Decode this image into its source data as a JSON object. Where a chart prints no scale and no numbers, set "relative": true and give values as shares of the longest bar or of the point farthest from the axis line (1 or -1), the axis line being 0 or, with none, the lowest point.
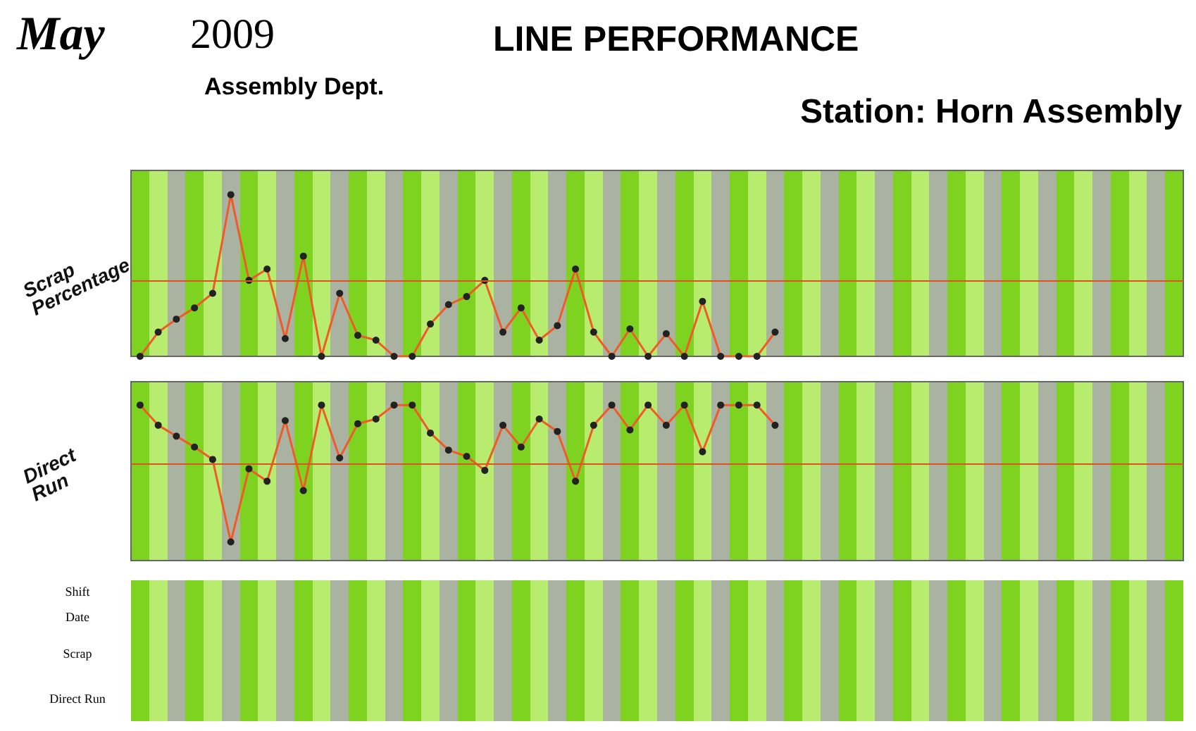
{
  "chart_data": [
    {
      "type": "line",
      "title": "LINE PERFORMANCE",
      "subtitle": "Assembly Dept.",
      "annotations": [
        "May",
        "2009",
        "Station: Horn Assembly"
      ],
      "ylabel": "Scrap Percentage",
      "relative": true,
      "marker": "circle",
      "line_style": "solid",
      "categories": [
        null,
        null,
        null,
        null,
        null,
        null,
        null,
        null,
        null,
        null,
        null,
        null,
        null,
        null,
        null,
        null,
        null,
        null,
        null,
        null,
        null,
        null,
        null,
        null,
        null,
        null,
        null,
        null,
        null,
        null,
        null,
        null,
        null,
        null,
        null,
        null,
        null,
        null,
        null,
        null,
        null,
        null,
        null,
        null,
        null,
        null,
        null,
        null,
        null,
        null,
        null,
        null,
        null,
        null,
        null,
        null,
        null,
        null
      ],
      "series": [
        {
          "color": "#f05a28",
          "values": [
            0,
            0.15,
            0.23,
            0.3,
            0.39,
            1,
            0.47,
            0.54,
            0.11,
            0.62,
            0,
            0.39,
            0.13,
            0.1,
            0,
            0,
            0.2,
            0.32,
            0.37,
            0.47,
            0.15,
            0.3,
            0.1,
            0.19,
            0.54,
            0.15,
            0,
            0.17,
            0,
            0.14,
            0,
            0.34,
            0,
            0,
            0,
            0.15,
            null,
            null,
            null,
            null,
            null,
            null,
            null,
            null,
            null,
            null,
            null,
            null,
            null,
            null,
            null,
            null,
            null,
            null,
            null,
            null,
            null,
            null
          ]
        }
      ],
      "ref_lines": [
        {
          "axis": "y",
          "value": 0.47,
          "color": "#d9541e"
        }
      ]
    },
    {
      "type": "line",
      "ylabel": "Direct Run",
      "relative": true,
      "marker": "circle",
      "line_style": "solid",
      "categories": [
        null,
        null,
        null,
        null,
        null,
        null,
        null,
        null,
        null,
        null,
        null,
        null,
        null,
        null,
        null,
        null,
        null,
        null,
        null,
        null,
        null,
        null,
        null,
        null,
        null,
        null,
        null,
        null,
        null,
        null,
        null,
        null,
        null,
        null,
        null,
        null,
        null,
        null,
        null,
        null,
        null,
        null,
        null,
        null,
        null,
        null,
        null,
        null,
        null,
        null,
        null,
        null,
        null,
        null,
        null,
        null,
        null,
        null
      ],
      "series": [
        {
          "color": "#f05a28",
          "values": [
            1,
            0.87,
            0.8,
            0.73,
            0.65,
            0.12,
            0.59,
            0.51,
            0.9,
            0.45,
            1,
            0.66,
            0.88,
            0.91,
            1,
            1,
            0.82,
            0.71,
            0.67,
            0.58,
            0.87,
            0.73,
            0.91,
            0.83,
            0.51,
            0.87,
            1,
            0.84,
            1,
            0.87,
            1,
            0.7,
            1,
            1,
            1,
            0.87,
            null,
            null,
            null,
            null,
            null,
            null,
            null,
            null,
            null,
            null,
            null,
            null,
            null,
            null,
            null,
            null,
            null,
            null,
            null,
            null,
            null,
            null
          ]
        }
      ],
      "ref_lines": [
        {
          "axis": "y",
          "value": 0.62,
          "color": "#d9541e"
        }
      ]
    },
    {
      "type": "other",
      "annotations": [
        "Shift",
        "Date",
        "Scrap",
        "Direct Run"
      ]
    }
  ]
}
